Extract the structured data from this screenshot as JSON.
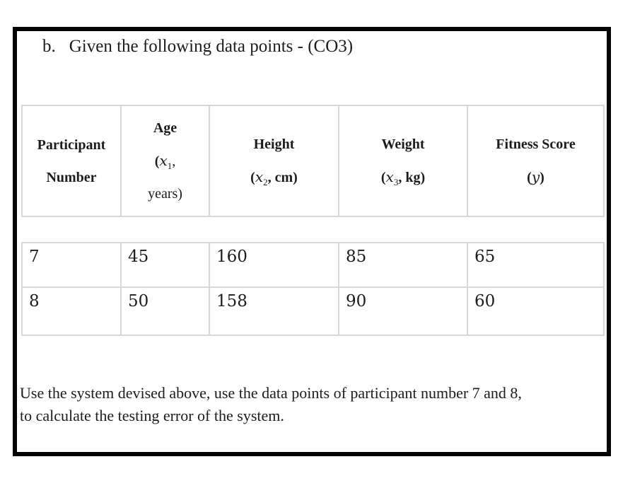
{
  "colors": {
    "frame": "#000000",
    "table_line": "#d8d8d8",
    "text": "#1c1c1c",
    "background": "#ffffff"
  },
  "question": {
    "marker": "b.",
    "title": "Given the following data points - (CO3)"
  },
  "data_table": {
    "header": {
      "columns": [
        {
          "label": "Participant Number",
          "lines": [
            [
              {
                "t": "Participant",
                "s": "bold"
              }
            ],
            [
              {
                "t": "Number",
                "s": "bold"
              }
            ]
          ]
        },
        {
          "label": "Age (x1, years)",
          "lines": [
            [
              {
                "t": "Age",
                "s": "bold"
              }
            ],
            [
              {
                "t": "(",
                "s": "bold"
              },
              {
                "t": "x",
                "s": "italic"
              },
              {
                "t": "1",
                "s": "sub"
              },
              {
                "t": ",",
                "s": "regular"
              }
            ],
            [
              {
                "t": "years)",
                "s": "regular"
              }
            ]
          ]
        },
        {
          "label": "Height (x2, cm)",
          "lines": [
            [
              {
                "t": "Height",
                "s": "bold"
              }
            ],
            [
              {
                "t": "(",
                "s": "bold"
              },
              {
                "t": "x",
                "s": "italic"
              },
              {
                "t": "2",
                "s": "sub"
              },
              {
                "t": ", cm)",
                "s": "bold"
              }
            ]
          ]
        },
        {
          "label": "Weight (x3, kg)",
          "lines": [
            [
              {
                "t": "Weight",
                "s": "bold"
              }
            ],
            [
              {
                "t": "(",
                "s": "bold"
              },
              {
                "t": "x",
                "s": "italic"
              },
              {
                "t": "3",
                "s": "sub"
              },
              {
                "t": ", kg)",
                "s": "bold"
              }
            ]
          ]
        },
        {
          "label": "Fitness Score (y)",
          "lines": [
            [
              {
                "t": "Fitness Score",
                "s": "bold"
              }
            ],
            [
              {
                "t": "(",
                "s": "bold"
              },
              {
                "t": "y",
                "s": "italic"
              },
              {
                "t": ")",
                "s": "bold"
              }
            ]
          ]
        }
      ]
    },
    "rows": [
      [
        "7",
        "45",
        "160",
        "85",
        "65"
      ],
      [
        "8",
        "50",
        "158",
        "90",
        "60"
      ]
    ]
  },
  "instruction": {
    "lines": [
      "Use the system devised above, use the data points of participant number 7 and 8,",
      "to calculate the testing error of the system."
    ]
  }
}
